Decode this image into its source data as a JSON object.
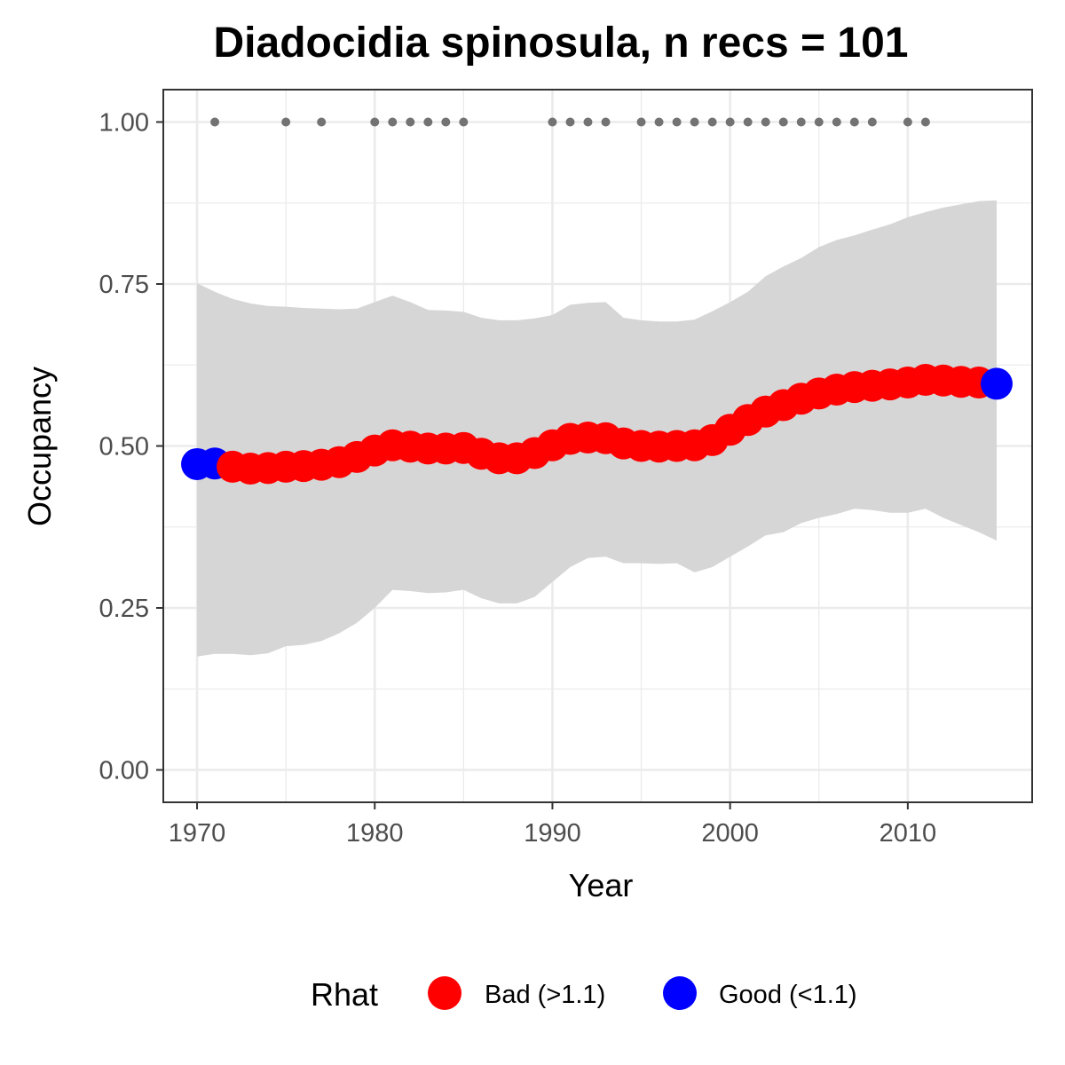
{
  "chart_data": {
    "type": "line",
    "title": "Diadocidia spinosula, n recs = 101",
    "xlabel": "Year",
    "ylabel": "Occupancy",
    "xlim": [
      1968.1,
      2017.0
    ],
    "ylim": [
      -0.05,
      1.05
    ],
    "x_ticks": [
      1970,
      1980,
      1990,
      2000,
      2010
    ],
    "x_tick_labels": [
      "1970",
      "1980",
      "1990",
      "2000",
      "2010"
    ],
    "y_ticks": [
      0,
      0.25,
      0.5,
      0.75,
      1.0
    ],
    "y_tick_labels": [
      "0.00",
      "0.25",
      "0.50",
      "0.75",
      "1.00"
    ],
    "grid": true,
    "years": [
      1970,
      1971,
      1972,
      1973,
      1974,
      1975,
      1976,
      1977,
      1978,
      1979,
      1980,
      1981,
      1982,
      1983,
      1984,
      1985,
      1986,
      1987,
      1988,
      1989,
      1990,
      1991,
      1992,
      1993,
      1994,
      1995,
      1996,
      1997,
      1998,
      1999,
      2000,
      2001,
      2002,
      2003,
      2004,
      2005,
      2006,
      2007,
      2008,
      2009,
      2010,
      2011,
      2012,
      2013,
      2014,
      2015
    ],
    "occupancy": [
      0.472,
      0.473,
      0.468,
      0.465,
      0.466,
      0.468,
      0.469,
      0.471,
      0.475,
      0.483,
      0.493,
      0.501,
      0.499,
      0.496,
      0.496,
      0.497,
      0.488,
      0.481,
      0.481,
      0.489,
      0.501,
      0.511,
      0.513,
      0.512,
      0.504,
      0.5,
      0.499,
      0.5,
      0.501,
      0.509,
      0.525,
      0.54,
      0.553,
      0.563,
      0.573,
      0.581,
      0.587,
      0.591,
      0.593,
      0.595,
      0.598,
      0.602,
      0.601,
      0.599,
      0.598,
      0.596
    ],
    "lower_ci": [
      0.175,
      0.179,
      0.179,
      0.177,
      0.18,
      0.191,
      0.193,
      0.199,
      0.211,
      0.227,
      0.25,
      0.278,
      0.276,
      0.273,
      0.274,
      0.278,
      0.265,
      0.257,
      0.257,
      0.267,
      0.29,
      0.313,
      0.327,
      0.329,
      0.319,
      0.319,
      0.318,
      0.319,
      0.305,
      0.313,
      0.329,
      0.345,
      0.362,
      0.367,
      0.381,
      0.389,
      0.395,
      0.403,
      0.401,
      0.397,
      0.397,
      0.403,
      0.389,
      0.378,
      0.367,
      0.354
    ],
    "upper_ci": [
      0.751,
      0.738,
      0.727,
      0.72,
      0.716,
      0.715,
      0.713,
      0.712,
      0.711,
      0.712,
      0.722,
      0.732,
      0.722,
      0.71,
      0.709,
      0.707,
      0.698,
      0.694,
      0.694,
      0.697,
      0.702,
      0.718,
      0.721,
      0.722,
      0.698,
      0.694,
      0.692,
      0.692,
      0.695,
      0.708,
      0.722,
      0.738,
      0.762,
      0.777,
      0.79,
      0.807,
      0.818,
      0.825,
      0.834,
      0.842,
      0.853,
      0.861,
      0.868,
      0.873,
      0.878,
      0.879
    ],
    "rhat_status": [
      "good",
      "good",
      "bad",
      "bad",
      "bad",
      "bad",
      "bad",
      "bad",
      "bad",
      "bad",
      "bad",
      "bad",
      "bad",
      "bad",
      "bad",
      "bad",
      "bad",
      "bad",
      "bad",
      "bad",
      "bad",
      "bad",
      "bad",
      "bad",
      "bad",
      "bad",
      "bad",
      "bad",
      "bad",
      "bad",
      "bad",
      "bad",
      "bad",
      "bad",
      "bad",
      "bad",
      "bad",
      "bad",
      "bad",
      "bad",
      "bad",
      "bad",
      "bad",
      "bad",
      "bad",
      "good"
    ],
    "record_years": [
      1971,
      1975,
      1977,
      1980,
      1981,
      1982,
      1983,
      1984,
      1985,
      1990,
      1991,
      1992,
      1993,
      1995,
      1996,
      1997,
      1998,
      1999,
      2000,
      2001,
      2002,
      2003,
      2004,
      2005,
      2006,
      2007,
      2008,
      2010,
      2011
    ],
    "record_value": 1.0,
    "legend": {
      "title": "Rhat",
      "position": "bottom",
      "entries": [
        {
          "key": "bad",
          "label": "Bad (>1.1)",
          "color": "#ff0000"
        },
        {
          "key": "good",
          "label": "Good (<1.1)",
          "color": "#0000ff"
        }
      ]
    },
    "colors": {
      "bad": "#ff0000",
      "good": "#0000ff",
      "ribbon": "#d6d6d6",
      "record_points": "#737373",
      "grid": "#ebebeb",
      "panel_border": "#333333"
    }
  }
}
